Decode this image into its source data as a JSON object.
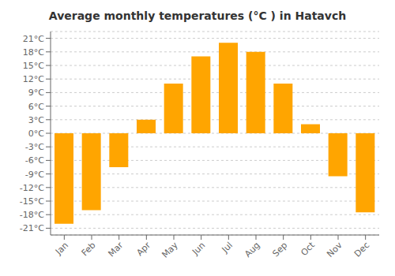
{
  "chart_data": {
    "type": "bar",
    "title": "Average monthly temperatures (°C ) in Hatavch",
    "categories": [
      "Jan",
      "Feb",
      "Mar",
      "Apr",
      "May",
      "Jun",
      "Jul",
      "Aug",
      "Sep",
      "Oct",
      "Nov",
      "Dec"
    ],
    "values": [
      -20,
      -17,
      -7.5,
      3,
      11,
      17,
      20,
      18,
      11,
      2,
      -9.5,
      -17.5
    ],
    "color": "#FFA500",
    "ylim": [
      -22.5,
      22.5
    ],
    "yticks": [
      {
        "value": -21,
        "label": "-21°C"
      },
      {
        "value": -18,
        "label": "-18°C"
      },
      {
        "value": -15,
        "label": "-15°C"
      },
      {
        "value": -12,
        "label": "-12°C"
      },
      {
        "value": -9,
        "label": "-9°C"
      },
      {
        "value": -6,
        "label": "-6°C"
      },
      {
        "value": -3,
        "label": "-3°C"
      },
      {
        "value": 0,
        "label": "0°C"
      },
      {
        "value": 3,
        "label": "3°C"
      },
      {
        "value": 6,
        "label": "6°C"
      },
      {
        "value": 9,
        "label": "9°C"
      },
      {
        "value": 12,
        "label": "12°C"
      },
      {
        "value": 15,
        "label": "15°C"
      },
      {
        "value": 18,
        "label": "18°C"
      },
      {
        "value": 21,
        "label": "21°C"
      }
    ],
    "grid": true
  }
}
